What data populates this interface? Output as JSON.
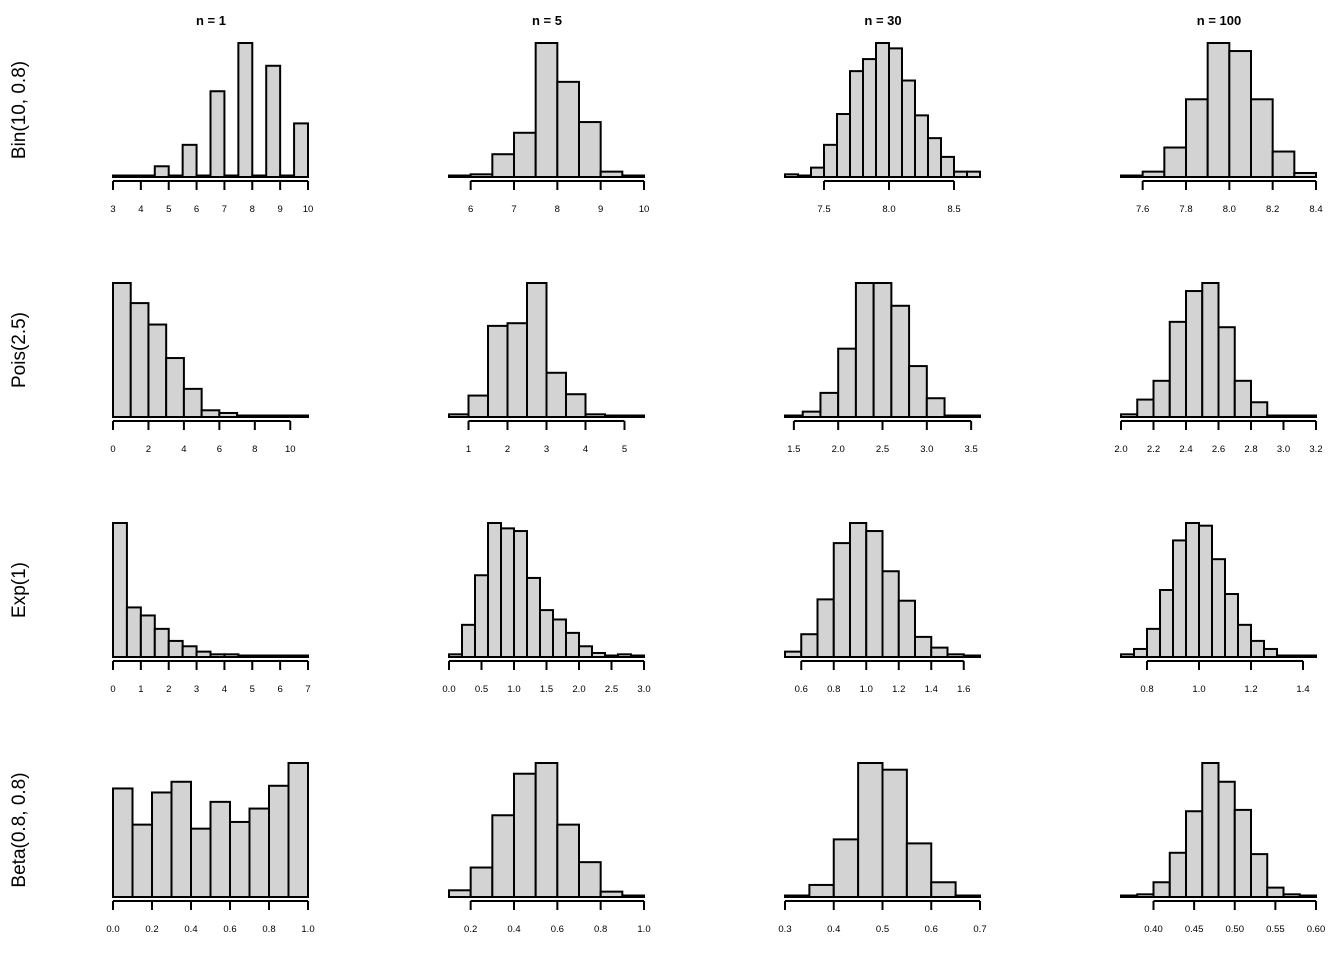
{
  "column_titles": [
    "n = 1",
    "n = 5",
    "n = 30",
    "n = 100"
  ],
  "row_labels": [
    "Bin(10, 0.8)",
    "Pois(2.5)",
    "Exp(1)",
    "Beta(0.8, 0.8)"
  ],
  "colors": {
    "bar_fill": "#d3d3d3",
    "bar_stroke": "#000000"
  },
  "chart_data": [
    {
      "type": "bar",
      "row": 0,
      "col": 0,
      "title": "n = 1",
      "breaks": [
        3,
        3.5,
        4,
        4.5,
        5,
        5.5,
        6,
        6.5,
        7,
        7.5,
        8,
        8.5,
        9,
        9.5,
        10
      ],
      "values": [
        1,
        1,
        0,
        8,
        0,
        24,
        0,
        64,
        0,
        100,
        0,
        83,
        0,
        40
      ],
      "xticks": [
        3,
        4,
        5,
        6,
        7,
        8,
        9,
        10
      ],
      "xtick_labels": [
        "3",
        "4",
        "5",
        "6",
        "7",
        "8",
        "9",
        "10"
      ]
    },
    {
      "type": "bar",
      "row": 0,
      "col": 1,
      "title": "n = 5",
      "breaks": [
        5.5,
        6,
        6.5,
        7,
        7.5,
        8,
        8.5,
        9,
        9.5,
        10
      ],
      "values": [
        1,
        2,
        17,
        33,
        100,
        71,
        41,
        4,
        1
      ],
      "xticks": [
        6,
        7,
        8,
        9,
        10
      ],
      "xtick_labels": [
        "6",
        "7",
        "8",
        "9",
        "10"
      ]
    },
    {
      "type": "bar",
      "row": 0,
      "col": 2,
      "title": "n = 30",
      "breaks": [
        7.2,
        7.3,
        7.4,
        7.5,
        7.6,
        7.7,
        7.8,
        7.9,
        8.0,
        8.1,
        8.2,
        8.3,
        8.4,
        8.5,
        8.6,
        8.7
      ],
      "values": [
        2,
        1,
        7,
        24,
        47,
        79,
        88,
        100,
        96,
        72,
        46,
        29,
        15,
        4,
        4
      ],
      "xticks": [
        7.5,
        8.0,
        8.5
      ],
      "xtick_labels": [
        "7.5",
        "8.0",
        "8.5"
      ]
    },
    {
      "type": "bar",
      "row": 0,
      "col": 3,
      "title": "n = 100",
      "breaks": [
        7.5,
        7.6,
        7.7,
        7.8,
        7.9,
        8.0,
        8.1,
        8.2,
        8.3,
        8.4
      ],
      "values": [
        1,
        4,
        22,
        58,
        100,
        94,
        58,
        19,
        3
      ],
      "xticks": [
        7.6,
        7.8,
        8.0,
        8.2,
        8.4
      ],
      "xtick_labels": [
        "7.6",
        "7.8",
        "8.0",
        "8.2",
        "8.4"
      ]
    },
    {
      "type": "bar",
      "row": 1,
      "col": 0,
      "breaks": [
        0,
        1,
        2,
        3,
        4,
        5,
        6,
        7,
        8,
        9,
        10,
        11
      ],
      "values": [
        100,
        85,
        69,
        44,
        21,
        5,
        3,
        1,
        1,
        0,
        0
      ],
      "xticks": [
        0,
        2,
        4,
        6,
        8,
        10
      ],
      "xtick_labels": [
        "0",
        "2",
        "4",
        "6",
        "8",
        "10"
      ]
    },
    {
      "type": "bar",
      "row": 1,
      "col": 1,
      "breaks": [
        0.5,
        1,
        1.5,
        2,
        2.5,
        3,
        3.5,
        4,
        4.5,
        5,
        5.5
      ],
      "values": [
        2,
        16,
        68,
        70,
        100,
        33,
        17,
        2,
        1,
        0
      ],
      "xticks": [
        1,
        2,
        3,
        4,
        5
      ],
      "xtick_labels": [
        "1",
        "2",
        "3",
        "4",
        "5"
      ]
    },
    {
      "type": "bar",
      "row": 1,
      "col": 2,
      "breaks": [
        1.4,
        1.6,
        1.8,
        2.0,
        2.2,
        2.4,
        2.6,
        2.8,
        3.0,
        3.2,
        3.4,
        3.6
      ],
      "values": [
        1,
        4,
        18,
        51,
        100,
        100,
        83,
        38,
        14,
        1,
        0
      ],
      "xticks": [
        1.5,
        2.0,
        2.5,
        3.0,
        3.5
      ],
      "xtick_labels": [
        "1.5",
        "2.0",
        "2.5",
        "3.0",
        "3.5"
      ]
    },
    {
      "type": "bar",
      "row": 1,
      "col": 3,
      "breaks": [
        2.0,
        2.1,
        2.2,
        2.3,
        2.4,
        2.5,
        2.6,
        2.7,
        2.8,
        2.9,
        3.0,
        3.1,
        3.2
      ],
      "values": [
        2,
        13,
        27,
        71,
        94,
        100,
        67,
        27,
        11,
        1,
        0,
        0
      ],
      "xticks": [
        2.0,
        2.2,
        2.4,
        2.6,
        2.8,
        3.0,
        3.2
      ],
      "xtick_labels": [
        "2.0",
        "2.2",
        "2.4",
        "2.6",
        "2.8",
        "3.0",
        "3.2"
      ]
    },
    {
      "type": "bar",
      "row": 2,
      "col": 0,
      "breaks": [
        0,
        0.5,
        1,
        1.5,
        2,
        2.5,
        3,
        3.5,
        4,
        4.5,
        5,
        5.5,
        6,
        6.5,
        7
      ],
      "values": [
        100,
        37,
        31,
        21,
        12,
        8,
        4,
        2,
        2,
        1,
        1,
        0,
        0,
        0
      ],
      "xticks": [
        0,
        1,
        2,
        3,
        4,
        5,
        6,
        7
      ],
      "xtick_labels": [
        "0",
        "1",
        "2",
        "3",
        "4",
        "5",
        "6",
        "7"
      ]
    },
    {
      "type": "bar",
      "row": 2,
      "col": 1,
      "breaks": [
        0,
        0.2,
        0.4,
        0.6,
        0.8,
        1.0,
        1.2,
        1.4,
        1.6,
        1.8,
        2.0,
        2.2,
        2.4,
        2.6,
        2.8,
        3.0
      ],
      "values": [
        2,
        24,
        61,
        100,
        96,
        94,
        59,
        35,
        28,
        18,
        8,
        3,
        1,
        2,
        1
      ],
      "xticks": [
        0,
        0.5,
        1.0,
        1.5,
        2.0,
        2.5,
        3.0
      ],
      "xtick_labels": [
        "0.0",
        "0.5",
        "1.0",
        "1.5",
        "2.0",
        "2.5",
        "3.0"
      ]
    },
    {
      "type": "bar",
      "row": 2,
      "col": 2,
      "breaks": [
        0.5,
        0.6,
        0.7,
        0.8,
        0.9,
        1.0,
        1.1,
        1.2,
        1.3,
        1.4,
        1.5,
        1.6,
        1.7
      ],
      "values": [
        4,
        17,
        43,
        85,
        100,
        94,
        64,
        42,
        15,
        7,
        2,
        1
      ],
      "xticks": [
        0.6,
        0.8,
        1.0,
        1.2,
        1.4,
        1.6
      ],
      "xtick_labels": [
        "0.6",
        "0.8",
        "1.0",
        "1.2",
        "1.4",
        "1.6"
      ]
    },
    {
      "type": "bar",
      "row": 2,
      "col": 3,
      "breaks": [
        0.7,
        0.75,
        0.8,
        0.85,
        0.9,
        0.95,
        1.0,
        1.05,
        1.1,
        1.15,
        1.2,
        1.25,
        1.3,
        1.35,
        1.4,
        1.45
      ],
      "values": [
        2,
        6,
        21,
        50,
        87,
        100,
        98,
        73,
        47,
        24,
        12,
        6,
        1,
        1,
        0
      ],
      "xticks": [
        0.8,
        1.0,
        1.2,
        1.4
      ],
      "xtick_labels": [
        "0.8",
        "1.0",
        "1.2",
        "1.4"
      ]
    },
    {
      "type": "bar",
      "row": 3,
      "col": 0,
      "breaks": [
        0,
        0.1,
        0.2,
        0.3,
        0.4,
        0.5,
        0.6,
        0.7,
        0.8,
        0.9,
        1.0
      ],
      "values": [
        81,
        54,
        78,
        86,
        51,
        71,
        56,
        66,
        83,
        100
      ],
      "xticks": [
        0,
        0.2,
        0.4,
        0.6,
        0.8,
        1.0
      ],
      "xtick_labels": [
        "0.0",
        "0.2",
        "0.4",
        "0.6",
        "0.8",
        "1.0"
      ]
    },
    {
      "type": "bar",
      "row": 3,
      "col": 1,
      "breaks": [
        0.1,
        0.2,
        0.3,
        0.4,
        0.5,
        0.6,
        0.7,
        0.8,
        0.9,
        1.0
      ],
      "values": [
        5,
        22,
        61,
        92,
        100,
        54,
        26,
        4,
        1
      ],
      "xticks": [
        0.2,
        0.4,
        0.6,
        0.8,
        1.0
      ],
      "xtick_labels": [
        "0.2",
        "0.4",
        "0.6",
        "0.8",
        "1.0"
      ]
    },
    {
      "type": "bar",
      "row": 3,
      "col": 2,
      "breaks": [
        0.3,
        0.35,
        0.4,
        0.45,
        0.5,
        0.55,
        0.6,
        0.65,
        0.7
      ],
      "values": [
        1,
        9,
        43,
        100,
        95,
        40,
        11,
        1
      ],
      "xticks": [
        0.3,
        0.4,
        0.5,
        0.6,
        0.7
      ],
      "xtick_labels": [
        "0.3",
        "0.4",
        "0.5",
        "0.6",
        "0.7"
      ]
    },
    {
      "type": "bar",
      "row": 3,
      "col": 3,
      "breaks": [
        0.36,
        0.38,
        0.4,
        0.42,
        0.44,
        0.46,
        0.48,
        0.5,
        0.52,
        0.54,
        0.56,
        0.58,
        0.6
      ],
      "values": [
        1,
        2,
        11,
        33,
        64,
        100,
        86,
        65,
        32,
        7,
        2,
        0
      ],
      "xticks": [
        0.4,
        0.45,
        0.5,
        0.55,
        0.6
      ],
      "xtick_labels": [
        "0.40",
        "0.45",
        "0.50",
        "0.55",
        "0.60"
      ]
    }
  ]
}
